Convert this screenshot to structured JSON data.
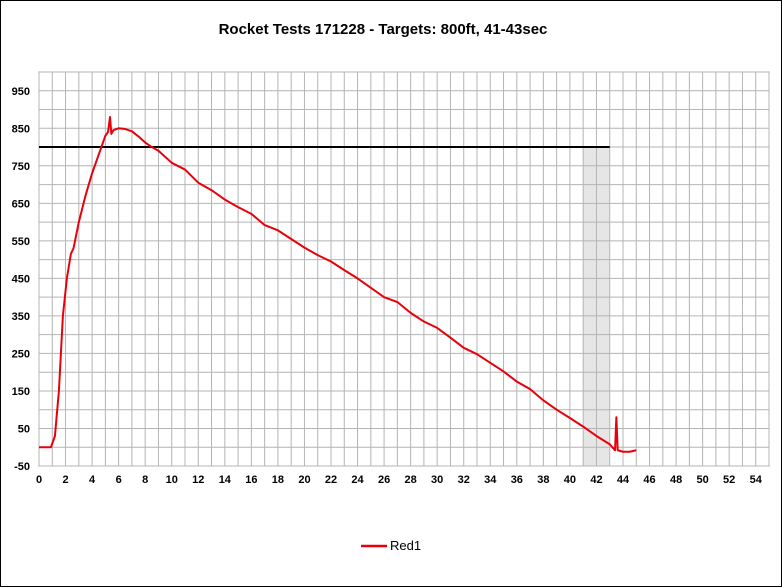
{
  "chart_data": {
    "type": "line",
    "title": "Rocket Tests 171228 - Targets: 800ft, 41-43sec",
    "xlabel": "",
    "ylabel": "",
    "xlim": [
      0,
      55
    ],
    "ylim": [
      -50,
      1000
    ],
    "x_ticks": [
      0,
      2,
      4,
      6,
      8,
      10,
      12,
      14,
      16,
      18,
      20,
      22,
      24,
      26,
      28,
      30,
      32,
      34,
      36,
      38,
      40,
      42,
      44,
      46,
      48,
      50,
      52,
      54
    ],
    "y_ticks": [
      -50,
      50,
      150,
      250,
      350,
      450,
      550,
      650,
      750,
      850,
      950
    ],
    "grid": true,
    "legend_position": "bottom-center",
    "target_altitude": 800,
    "target_altitude_range_x": [
      0,
      43
    ],
    "target_time_window": [
      41,
      43
    ],
    "series": [
      {
        "name": "Red1",
        "color": "#e8000b",
        "points": [
          [
            0,
            0
          ],
          [
            0.9,
            0
          ],
          [
            1.2,
            30
          ],
          [
            1.5,
            150
          ],
          [
            1.8,
            350
          ],
          [
            2.1,
            450
          ],
          [
            2.4,
            515
          ],
          [
            2.6,
            530
          ],
          [
            3.0,
            600
          ],
          [
            3.5,
            670
          ],
          [
            4.0,
            730
          ],
          [
            4.5,
            780
          ],
          [
            5.0,
            830
          ],
          [
            5.2,
            840
          ],
          [
            5.35,
            880
          ],
          [
            5.45,
            835
          ],
          [
            5.6,
            845
          ],
          [
            6.0,
            850
          ],
          [
            6.5,
            848
          ],
          [
            7.0,
            842
          ],
          [
            7.5,
            828
          ],
          [
            8.0,
            812
          ],
          [
            8.5,
            800
          ],
          [
            9.0,
            790
          ],
          [
            10.0,
            758
          ],
          [
            11.0,
            740
          ],
          [
            12.0,
            705
          ],
          [
            13.0,
            685
          ],
          [
            14.0,
            660
          ],
          [
            15.0,
            640
          ],
          [
            16.0,
            622
          ],
          [
            17.0,
            592
          ],
          [
            18.0,
            578
          ],
          [
            19.0,
            555
          ],
          [
            20.0,
            532
          ],
          [
            21.0,
            512
          ],
          [
            22.0,
            495
          ],
          [
            23.0,
            472
          ],
          [
            24.0,
            450
          ],
          [
            25.0,
            425
          ],
          [
            26.0,
            400
          ],
          [
            27.0,
            387
          ],
          [
            28.0,
            358
          ],
          [
            29.0,
            335
          ],
          [
            30.0,
            318
          ],
          [
            31.0,
            292
          ],
          [
            32.0,
            265
          ],
          [
            33.0,
            248
          ],
          [
            34.0,
            225
          ],
          [
            35.0,
            202
          ],
          [
            36.0,
            175
          ],
          [
            37.0,
            155
          ],
          [
            38.0,
            125
          ],
          [
            39.0,
            100
          ],
          [
            40.0,
            78
          ],
          [
            41.0,
            55
          ],
          [
            42.0,
            30
          ],
          [
            43.0,
            8
          ],
          [
            43.4,
            -8
          ],
          [
            43.5,
            80
          ],
          [
            43.6,
            -8
          ],
          [
            44.0,
            -12
          ],
          [
            44.5,
            -12
          ],
          [
            45.0,
            -8
          ]
        ]
      }
    ]
  }
}
